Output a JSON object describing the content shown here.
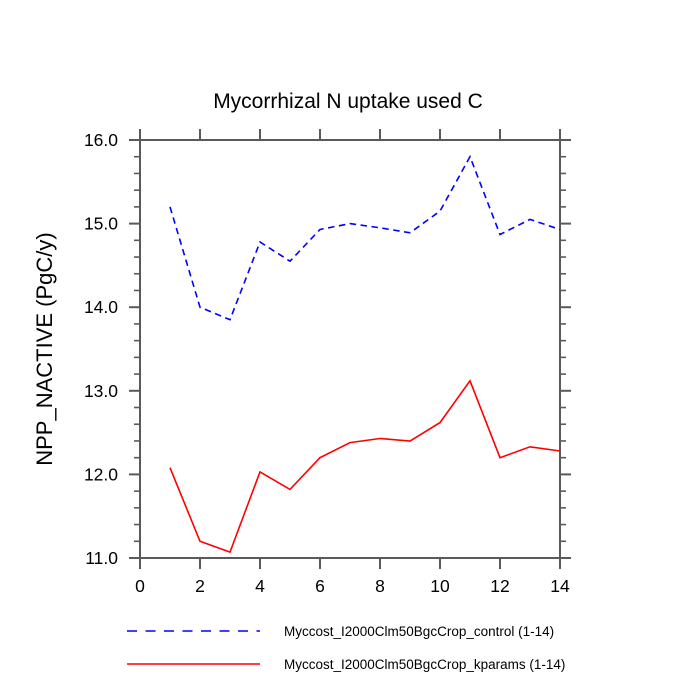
{
  "page": {
    "background": "#ffffff"
  },
  "colors": {
    "axis": "#5a5a5a",
    "text": "#000000",
    "control_line": "#0000ff",
    "kparams_line": "#ff0000"
  },
  "chart_data": {
    "type": "line",
    "title": "Mycorrhizal N uptake used C",
    "xlabel": "",
    "ylabel": "NPP_NACTIVE (PgC/y)",
    "xlim": [
      0,
      14
    ],
    "ylim": [
      11.0,
      16.0
    ],
    "xticks": [
      0,
      2,
      4,
      6,
      8,
      10,
      12,
      14
    ],
    "xtick_labels": [
      "0",
      "2",
      "4",
      "6",
      "8",
      "10",
      "12",
      "14"
    ],
    "yticks": [
      11.0,
      12.0,
      13.0,
      14.0,
      15.0,
      16.0
    ],
    "ytick_labels": [
      "11.0",
      "12.0",
      "13.0",
      "14.0",
      "15.0",
      "16.0"
    ],
    "y_minor_step": 0.2,
    "grid": false,
    "legend_position": "bottom",
    "x": [
      1,
      2,
      3,
      4,
      5,
      6,
      7,
      8,
      9,
      10,
      11,
      12,
      13,
      14
    ],
    "series": [
      {
        "name": "Myccost_I2000Clm50BgcCrop_control (1-14)",
        "color": "#0000ff",
        "style": "dashed",
        "values": [
          15.2,
          14.0,
          13.85,
          14.78,
          14.55,
          14.93,
          15.0,
          14.95,
          14.89,
          15.15,
          15.8,
          14.87,
          15.05,
          14.93
        ]
      },
      {
        "name": "Myccost_I2000Clm50BgcCrop_kparams (1-14)",
        "color": "#ff0000",
        "style": "solid",
        "values": [
          12.08,
          11.2,
          11.07,
          12.03,
          11.82,
          12.2,
          12.38,
          12.43,
          12.4,
          12.62,
          13.12,
          12.2,
          12.33,
          12.28
        ]
      }
    ]
  }
}
